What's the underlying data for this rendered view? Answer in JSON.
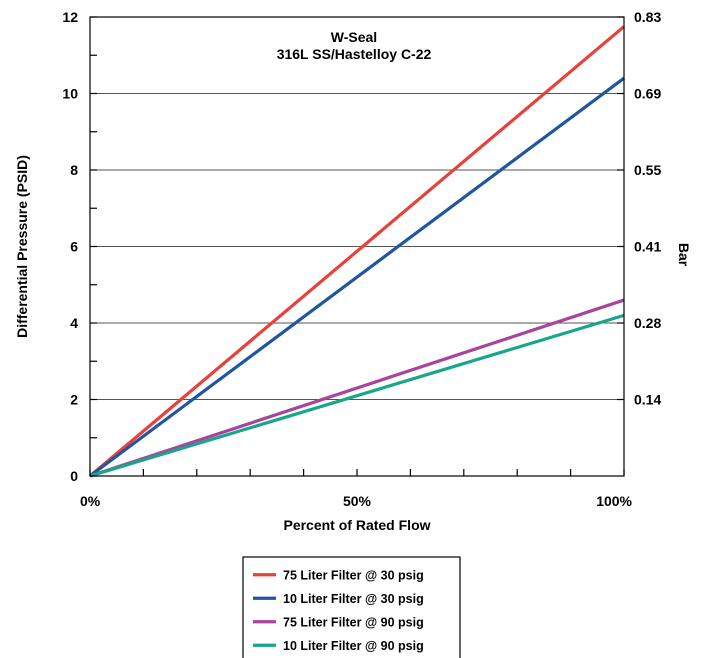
{
  "chart_data": {
    "type": "line",
    "title": "W-Seal",
    "subtitle": "316L SS/Hastelloy C-22",
    "xlabel": "Percent of Rated Flow",
    "ylabel": "Differential Pressure (PSID)",
    "y2label": "Bar",
    "xlim": [
      0,
      100
    ],
    "ylim": [
      0,
      12
    ],
    "x_ticks": [
      0,
      50,
      100
    ],
    "x_tick_labels": [
      "0%",
      "50%",
      "100%"
    ],
    "x_minor_ticks": [
      10,
      20,
      30,
      40,
      60,
      70,
      80,
      90
    ],
    "y_ticks": [
      0,
      2,
      4,
      6,
      8,
      10,
      12
    ],
    "y_tick_labels": [
      "0",
      "2",
      "4",
      "6",
      "8",
      "10",
      "12"
    ],
    "y_minor_ticks": [
      1,
      3,
      5,
      7,
      9,
      11
    ],
    "y2_ticks": [
      {
        "psid": 2,
        "label": "0.14"
      },
      {
        "psid": 4,
        "label": "0.28"
      },
      {
        "psid": 6,
        "label": "0.41"
      },
      {
        "psid": 8,
        "label": "0.55"
      },
      {
        "psid": 10,
        "label": "0.69"
      },
      {
        "psid": 12,
        "label": "0.83"
      }
    ],
    "grid": "horizontal",
    "legend_position": "bottom-center",
    "series": [
      {
        "name": "75 Liter Filter @ 30 psig",
        "color": "#e8403a",
        "x": [
          0,
          100
        ],
        "y": [
          0,
          11.75
        ]
      },
      {
        "name": "10 Liter Filter @ 30 psig",
        "color": "#1e56a0",
        "x": [
          0,
          100
        ],
        "y": [
          0,
          10.4
        ]
      },
      {
        "name": "75 Liter Filter @ 90 psig",
        "color": "#a8449e",
        "x": [
          0,
          100
        ],
        "y": [
          0,
          4.6
        ]
      },
      {
        "name": "10 Liter Filter @ 90 psig",
        "color": "#17a68a",
        "x": [
          0,
          100
        ],
        "y": [
          0,
          4.2
        ]
      }
    ]
  }
}
